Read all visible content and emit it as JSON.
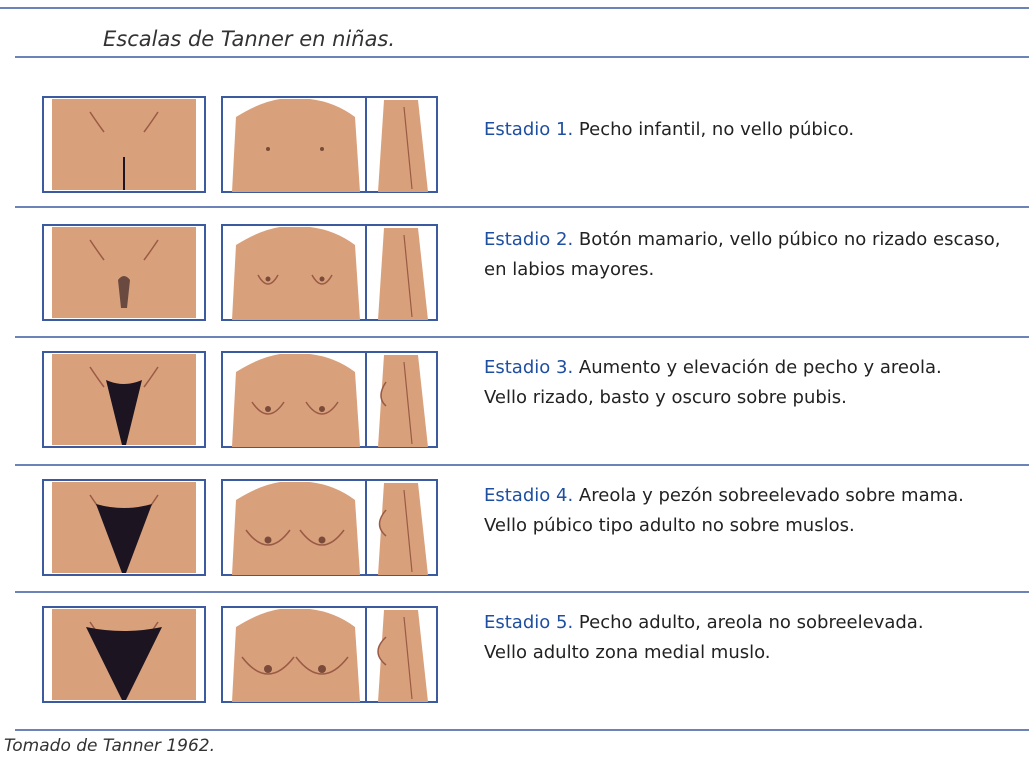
{
  "header": {
    "title": "Escalas de Tanner en niñas."
  },
  "stages": [
    {
      "label": "Estadio 1.",
      "lines": [
        "Pecho infantil, no vello púbico."
      ]
    },
    {
      "label": "Estadio 2.",
      "lines": [
        "Botón mamario, vello púbico no rizado escaso,",
        "en labios mayores."
      ]
    },
    {
      "label": "Estadio 3.",
      "lines": [
        "Aumento y elevación de pecho y areola.",
        "Vello rizado, basto y oscuro sobre pubis."
      ]
    },
    {
      "label": "Estadio 4.",
      "lines": [
        "Areola y pezón sobreelevado sobre mama.",
        "Vello púbico tipo adulto no sobre muslos."
      ]
    },
    {
      "label": "Estadio 5.",
      "lines": [
        "Pecho adulto, areola no sobreelevada.",
        "Vello adulto zona medial muslo."
      ]
    }
  ],
  "footer": {
    "source": "Tomado de Tanner 1962."
  }
}
